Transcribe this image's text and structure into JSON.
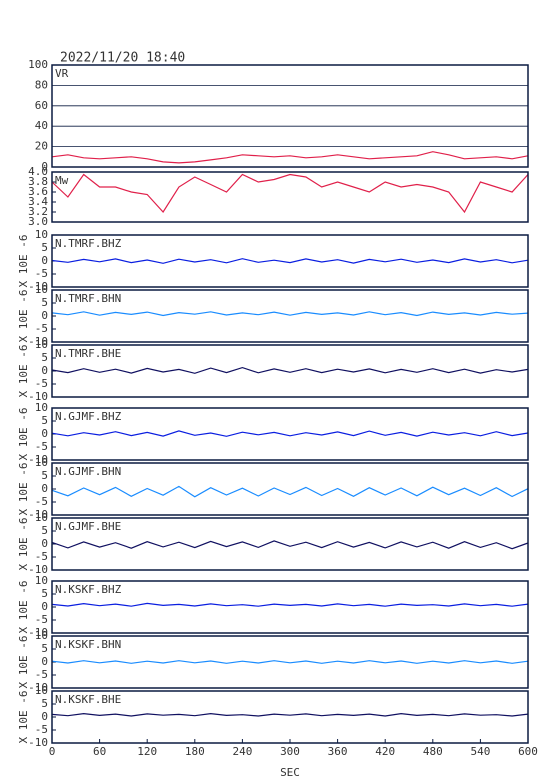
{
  "chart_data": [
    {
      "type": "line",
      "title": "2022/11/20 18:40",
      "label": "VR",
      "color": "#e0204a",
      "grid": true,
      "x": [
        0,
        20,
        40,
        60,
        80,
        100,
        120,
        140,
        160,
        180,
        200,
        220,
        240,
        260,
        280,
        300,
        320,
        340,
        360,
        380,
        400,
        420,
        440,
        460,
        480,
        500,
        520,
        540,
        560,
        580,
        600
      ],
      "values": [
        10,
        12,
        9,
        8,
        9,
        10,
        8,
        5,
        4,
        5,
        7,
        9,
        12,
        11,
        10,
        11,
        9,
        10,
        12,
        10,
        8,
        9,
        10,
        11,
        15,
        12,
        8,
        9,
        10,
        8,
        11
      ],
      "xlim": [
        0,
        600
      ],
      "ylim": [
        0,
        100
      ],
      "yticks": [
        0,
        20,
        40,
        60,
        80,
        100
      ]
    },
    {
      "type": "line",
      "label": "Mw",
      "color": "#e0204a",
      "x": [
        0,
        20,
        40,
        60,
        80,
        100,
        120,
        140,
        160,
        180,
        200,
        220,
        240,
        260,
        280,
        300,
        320,
        340,
        360,
        380,
        400,
        420,
        440,
        460,
        480,
        500,
        520,
        540,
        560,
        580,
        600
      ],
      "values": [
        3.8,
        3.5,
        3.95,
        3.7,
        3.7,
        3.6,
        3.55,
        3.2,
        3.7,
        3.9,
        3.75,
        3.6,
        3.95,
        3.8,
        3.85,
        3.95,
        3.9,
        3.7,
        3.8,
        3.7,
        3.6,
        3.8,
        3.7,
        3.75,
        3.7,
        3.6,
        3.2,
        3.8,
        3.7,
        3.6,
        3.95
      ],
      "xlim": [
        0,
        600
      ],
      "ylim": [
        3,
        4
      ],
      "yticks": [
        {
          "value": 3,
          "label": "3.0"
        },
        3.2,
        3.4,
        3.6,
        3.8,
        {
          "value": 4,
          "label": "4.0"
        }
      ]
    },
    {
      "type": "line",
      "label": "N.TMRF.BHZ",
      "ylabel": "X 10E -6",
      "color": "#0a1ee0",
      "x": [
        0,
        20,
        40,
        60,
        80,
        100,
        120,
        140,
        160,
        180,
        200,
        220,
        240,
        260,
        280,
        300,
        320,
        340,
        360,
        380,
        400,
        420,
        440,
        460,
        480,
        500,
        520,
        540,
        560,
        580,
        600
      ],
      "values": [
        0.2,
        -0.5,
        0.6,
        -0.3,
        0.8,
        -0.6,
        0.4,
        -0.9,
        0.7,
        -0.4,
        0.5,
        -0.7,
        0.9,
        -0.5,
        0.3,
        -0.6,
        0.8,
        -0.4,
        0.5,
        -0.8,
        0.6,
        -0.3,
        0.7,
        -0.5,
        0.4,
        -0.6,
        0.8,
        -0.4,
        0.5,
        -0.7,
        0.3
      ],
      "xlim": [
        0,
        600
      ],
      "ylim": [
        -10,
        10
      ],
      "yticks": [
        -10,
        -5,
        0,
        5,
        10
      ]
    },
    {
      "type": "line",
      "label": "N.TMRF.BHN",
      "ylabel": "X 10E -6",
      "color": "#1a8cff",
      "x": [
        0,
        20,
        40,
        60,
        80,
        100,
        120,
        140,
        160,
        180,
        200,
        220,
        240,
        260,
        280,
        300,
        320,
        340,
        360,
        380,
        400,
        420,
        440,
        460,
        480,
        500,
        520,
        540,
        560,
        580,
        600
      ],
      "values": [
        1.2,
        0.5,
        1.6,
        0.3,
        1.4,
        0.6,
        1.5,
        0.2,
        1.3,
        0.7,
        1.6,
        0.4,
        1.2,
        0.5,
        1.5,
        0.3,
        1.4,
        0.6,
        1.2,
        0.4,
        1.6,
        0.5,
        1.3,
        0.2,
        1.5,
        0.6,
        1.2,
        0.4,
        1.4,
        0.7,
        1.1
      ],
      "xlim": [
        0,
        600
      ],
      "ylim": [
        -10,
        10
      ],
      "yticks": [
        -10,
        -5,
        0,
        5,
        10
      ]
    },
    {
      "type": "line",
      "label": "N.TMRF.BHE",
      "ylabel": "X 10E -6",
      "color": "#101060",
      "x": [
        0,
        20,
        40,
        60,
        80,
        100,
        120,
        140,
        160,
        180,
        200,
        220,
        240,
        260,
        280,
        300,
        320,
        340,
        360,
        380,
        400,
        420,
        440,
        460,
        480,
        500,
        520,
        540,
        560,
        580,
        600
      ],
      "values": [
        0.4,
        -0.6,
        0.9,
        -0.5,
        0.7,
        -0.8,
        1.0,
        -0.4,
        0.6,
        -0.9,
        1.1,
        -0.6,
        1.3,
        -0.7,
        0.8,
        -0.5,
        0.9,
        -0.6,
        0.7,
        -0.4,
        0.8,
        -0.7,
        0.6,
        -0.5,
        0.9,
        -0.6,
        0.7,
        -0.8,
        0.5,
        -0.4,
        0.6
      ],
      "xlim": [
        0,
        600
      ],
      "ylim": [
        -10,
        10
      ],
      "yticks": [
        -10,
        -5,
        0,
        5,
        10
      ]
    },
    {
      "type": "line",
      "label": "N.GJMF.BHZ",
      "ylabel": "X 10E -6",
      "color": "#0a1ee0",
      "x": [
        0,
        20,
        40,
        60,
        80,
        100,
        120,
        140,
        160,
        180,
        200,
        220,
        240,
        260,
        280,
        300,
        320,
        340,
        360,
        380,
        400,
        420,
        440,
        460,
        480,
        500,
        520,
        540,
        560,
        580,
        600
      ],
      "values": [
        0.3,
        -0.7,
        0.5,
        -0.4,
        0.9,
        -0.6,
        0.6,
        -0.8,
        1.2,
        -0.5,
        0.4,
        -0.9,
        0.7,
        -0.3,
        0.6,
        -0.7,
        0.5,
        -0.4,
        0.8,
        -0.6,
        1.1,
        -0.5,
        0.6,
        -0.8,
        0.7,
        -0.4,
        0.5,
        -0.7,
        0.9,
        -0.6,
        0.4
      ],
      "xlim": [
        0,
        600
      ],
      "ylim": [
        -10,
        10
      ],
      "yticks": [
        -10,
        -5,
        0,
        5,
        10
      ]
    },
    {
      "type": "line",
      "label": "N.GJMF.BHN",
      "ylabel": "X 10E -6",
      "color": "#1a8cff",
      "x": [
        0,
        20,
        40,
        60,
        80,
        100,
        120,
        140,
        160,
        180,
        200,
        220,
        240,
        260,
        280,
        300,
        320,
        340,
        360,
        380,
        400,
        420,
        440,
        460,
        480,
        500,
        520,
        540,
        560,
        580,
        600
      ],
      "values": [
        -0.5,
        -2.6,
        0.4,
        -2.2,
        0.6,
        -2.8,
        0.2,
        -2.4,
        1.0,
        -3.0,
        0.5,
        -2.3,
        0.3,
        -2.7,
        0.4,
        -2.1,
        0.6,
        -2.5,
        0.2,
        -2.8,
        0.5,
        -2.3,
        0.4,
        -2.6,
        0.7,
        -2.2,
        0.3,
        -2.5,
        0.5,
        -2.9,
        0.1
      ],
      "xlim": [
        0,
        600
      ],
      "ylim": [
        -10,
        10
      ],
      "yticks": [
        -10,
        -5,
        0,
        5,
        10
      ]
    },
    {
      "type": "line",
      "label": "N.GJMF.BHE",
      "ylabel": "X 10E -6",
      "color": "#101060",
      "x": [
        0,
        20,
        40,
        60,
        80,
        100,
        120,
        140,
        160,
        180,
        200,
        220,
        240,
        260,
        280,
        300,
        320,
        340,
        360,
        380,
        400,
        420,
        440,
        460,
        480,
        500,
        520,
        540,
        560,
        580,
        600
      ],
      "values": [
        0.6,
        -1.5,
        0.8,
        -1.2,
        0.5,
        -1.6,
        0.9,
        -1.1,
        0.7,
        -1.4,
        1.0,
        -1.0,
        0.8,
        -1.3,
        1.2,
        -0.9,
        0.7,
        -1.4,
        0.9,
        -1.2,
        0.6,
        -1.5,
        0.8,
        -1.1,
        0.7,
        -1.6,
        0.9,
        -1.3,
        0.5,
        -1.8,
        0.4
      ],
      "xlim": [
        0,
        600
      ],
      "ylim": [
        -10,
        10
      ],
      "yticks": [
        -10,
        -5,
        0,
        5,
        10
      ]
    },
    {
      "type": "line",
      "label": "N.KSKF.BHZ",
      "ylabel": "X 10E -6",
      "color": "#0a1ee0",
      "x": [
        0,
        20,
        40,
        60,
        80,
        100,
        120,
        140,
        160,
        180,
        200,
        220,
        240,
        260,
        280,
        300,
        320,
        340,
        360,
        380,
        400,
        420,
        440,
        460,
        480,
        500,
        520,
        540,
        560,
        580,
        600
      ],
      "values": [
        1.0,
        0.4,
        1.3,
        0.5,
        1.1,
        0.3,
        1.4,
        0.6,
        1.0,
        0.4,
        1.2,
        0.5,
        0.9,
        0.3,
        1.1,
        0.6,
        1.0,
        0.4,
        1.2,
        0.5,
        1.0,
        0.3,
        1.1,
        0.6,
        0.9,
        0.4,
        1.2,
        0.5,
        1.0,
        0.3,
        1.1
      ],
      "xlim": [
        0,
        600
      ],
      "ylim": [
        -10,
        10
      ],
      "yticks": [
        -10,
        -5,
        0,
        5,
        10
      ]
    },
    {
      "type": "line",
      "label": "N.KSKF.BHN",
      "ylabel": "X 10E -6",
      "color": "#1a8cff",
      "x": [
        0,
        20,
        40,
        60,
        80,
        100,
        120,
        140,
        160,
        180,
        200,
        220,
        240,
        260,
        280,
        300,
        320,
        340,
        360,
        380,
        400,
        420,
        440,
        460,
        480,
        500,
        520,
        540,
        560,
        580,
        600
      ],
      "values": [
        0.3,
        -0.4,
        0.5,
        -0.3,
        0.4,
        -0.5,
        0.3,
        -0.4,
        0.5,
        -0.3,
        0.4,
        -0.5,
        0.3,
        -0.4,
        0.5,
        -0.3,
        0.4,
        -0.5,
        0.3,
        -0.4,
        0.5,
        -0.3,
        0.4,
        -0.5,
        0.3,
        -0.4,
        0.5,
        -0.3,
        0.4,
        -0.5,
        0.3
      ],
      "xlim": [
        0,
        600
      ],
      "ylim": [
        -10,
        10
      ],
      "yticks": [
        -10,
        -5,
        0,
        5,
        10
      ]
    },
    {
      "type": "line",
      "label": "N.KSKF.BHE",
      "ylabel": "X 10E -6",
      "color": "#101060",
      "xlabel": "SEC",
      "x": [
        0,
        20,
        40,
        60,
        80,
        100,
        120,
        140,
        160,
        180,
        200,
        220,
        240,
        260,
        280,
        300,
        320,
        340,
        360,
        380,
        400,
        420,
        440,
        460,
        480,
        500,
        520,
        540,
        560,
        580,
        600
      ],
      "values": [
        1.0,
        0.5,
        1.3,
        0.6,
        1.1,
        0.4,
        1.2,
        0.7,
        1.0,
        0.5,
        1.3,
        0.6,
        0.9,
        0.4,
        1.1,
        0.7,
        1.2,
        0.5,
        1.0,
        0.6,
        1.1,
        0.4,
        1.3,
        0.6,
        1.0,
        0.5,
        1.2,
        0.7,
        0.9,
        0.4,
        1.1
      ],
      "xlim": [
        0,
        600
      ],
      "ylim": [
        -10,
        10
      ],
      "yticks": [
        -10,
        -5,
        0,
        5,
        10
      ],
      "xticks": [
        0,
        60,
        120,
        180,
        240,
        300,
        360,
        420,
        480,
        540,
        600
      ]
    }
  ]
}
